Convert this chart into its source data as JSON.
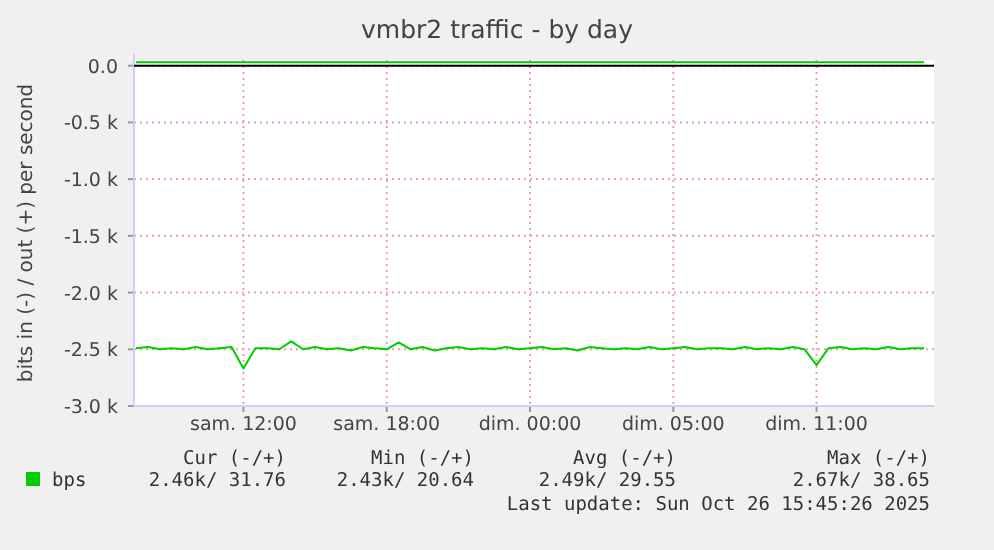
{
  "chart_data": {
    "type": "line",
    "title": "vmbr2 traffic - by day",
    "ylabel": "bits in (-) / out (+) per second",
    "categories": [
      null,
      null,
      null,
      null,
      null,
      null,
      null,
      null,
      null,
      "sam. 12:00",
      null,
      null,
      null,
      null,
      null,
      null,
      null,
      null,
      null,
      null,
      null,
      "sam. 18:00",
      null,
      null,
      null,
      null,
      null,
      null,
      null,
      null,
      null,
      null,
      null,
      "dim. 00:00",
      null,
      null,
      null,
      null,
      null,
      null,
      null,
      null,
      null,
      null,
      null,
      "dim. 05:00",
      null,
      null,
      null,
      null,
      null,
      null,
      null,
      null,
      null,
      null,
      null,
      "dim. 11:00",
      null,
      null,
      null,
      null,
      null,
      null,
      null,
      null,
      null
    ],
    "series": [
      {
        "name": "bps",
        "color": "#00cc00",
        "values": [
          -2490,
          -2480,
          -2500,
          -2490,
          -2500,
          -2480,
          -2500,
          -2490,
          -2480,
          -2670,
          -2490,
          -2490,
          -2500,
          -2430,
          -2500,
          -2480,
          -2500,
          -2490,
          -2510,
          -2480,
          -2490,
          -2500,
          -2440,
          -2500,
          -2480,
          -2510,
          -2490,
          -2480,
          -2500,
          -2490,
          -2500,
          -2480,
          -2500,
          -2490,
          -2480,
          -2500,
          -2490,
          -2510,
          -2480,
          -2490,
          -2500,
          -2490,
          -2500,
          -2480,
          -2500,
          -2490,
          -2480,
          -2500,
          -2490,
          -2490,
          -2500,
          -2480,
          -2500,
          -2490,
          -2500,
          -2480,
          -2500,
          -2640,
          -2490,
          -2480,
          -2500,
          -2490,
          -2500,
          -2480,
          -2500,
          -2490,
          -2490
        ]
      },
      {
        "color": "#00cc00",
        "values": [
          30,
          30,
          30,
          30,
          30,
          30,
          30,
          30,
          30,
          30,
          30,
          30,
          30,
          30,
          30,
          30,
          30,
          30,
          30,
          30,
          30,
          30,
          30,
          30,
          30,
          30,
          30,
          30,
          30,
          30,
          30,
          30,
          30,
          30,
          30,
          30,
          30,
          30,
          30,
          30,
          30,
          30,
          30,
          30,
          30,
          30,
          30,
          30,
          30,
          30,
          30,
          30,
          30,
          30,
          30,
          30,
          30,
          30,
          30,
          30,
          30,
          30,
          30,
          30,
          30,
          30,
          30
        ]
      }
    ],
    "ylim": [
      -3000,
      50
    ],
    "yticks": [
      {
        "value": 0,
        "label": "0.0"
      },
      {
        "value": -500,
        "label": "-0.5 k"
      },
      {
        "value": -1000,
        "label": "-1.0 k"
      },
      {
        "value": -1500,
        "label": "-1.5 k"
      },
      {
        "value": -2000,
        "label": "-2.0 k"
      },
      {
        "value": -2500,
        "label": "-2.5 k"
      },
      {
        "value": -3000,
        "label": "-3.0 k"
      }
    ],
    "grid": true,
    "legend": "bottom",
    "line_style": "solid",
    "annotations": [
      "Cur (-/+)",
      "Min (-/+)",
      "Avg (-/+)",
      "Max (-/+)",
      "2.46k/ 31.76",
      "2.43k/ 20.64",
      "2.49k/ 29.55",
      "2.67k/ 38.65",
      "Last update: Sun Oct 26 15:45:26 2025"
    ]
  }
}
